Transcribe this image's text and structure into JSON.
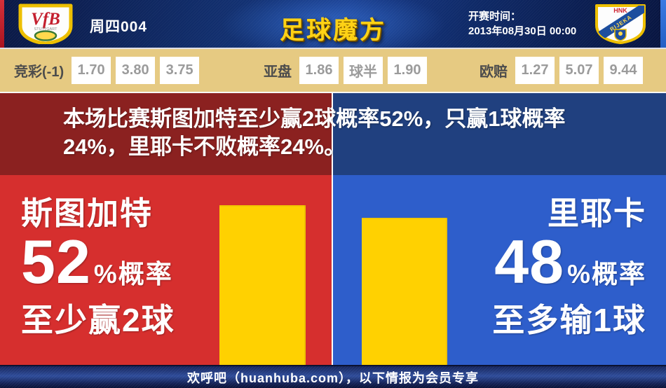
{
  "header": {
    "match_label": "周四004",
    "site_logo": "足球魔方",
    "kickoff_label": "开赛时间：",
    "kickoff_time": "2013年08月30日 00:00"
  },
  "icons": {
    "home_crest": "vfb-stuttgart-crest",
    "away_crest": "hnk-rijeka-crest"
  },
  "odds": {
    "jingcai": {
      "label": "竞彩(-1)",
      "values": [
        "1.70",
        "3.80",
        "3.75"
      ]
    },
    "yapan": {
      "label": "亚盘",
      "values": [
        "1.86",
        "球半",
        "1.90"
      ]
    },
    "oupei": {
      "label": "欧赔",
      "values": [
        "1.27",
        "5.07",
        "9.44"
      ]
    }
  },
  "summary": {
    "line1": "本场比赛斯图加特至少赢2球概率52%，只赢1球概率",
    "line2": "24%，里耶卡不败概率24%。"
  },
  "panels": {
    "home": {
      "team": "斯图加特",
      "percent": "52",
      "suffix": "%概率",
      "outcome": "至少赢2球"
    },
    "away": {
      "team": "里耶卡",
      "percent": "48",
      "suffix": "%概率",
      "outcome": "至多输1球"
    }
  },
  "footer": {
    "text": "欢呼吧（huanhuba.com），以下情报为会员专享"
  },
  "colors": {
    "home_panel": "#d62f2e",
    "away_panel": "#2e5ecb",
    "home_band": "#8b2120",
    "away_band": "#20407f",
    "bar": "#ffd101",
    "odds_bg": "#e6ca82",
    "header_navy": "#123070"
  },
  "chart_data": {
    "type": "bar",
    "categories": [
      "斯图加特",
      "里耶卡"
    ],
    "values": [
      52,
      48
    ],
    "unit": "%",
    "bar_color": "#ffd101",
    "annotations": [
      "52%概率 至少赢2球",
      "48%概率 至多输1球"
    ],
    "ylim": [
      0,
      60
    ],
    "legend": "none",
    "grid": false
  }
}
